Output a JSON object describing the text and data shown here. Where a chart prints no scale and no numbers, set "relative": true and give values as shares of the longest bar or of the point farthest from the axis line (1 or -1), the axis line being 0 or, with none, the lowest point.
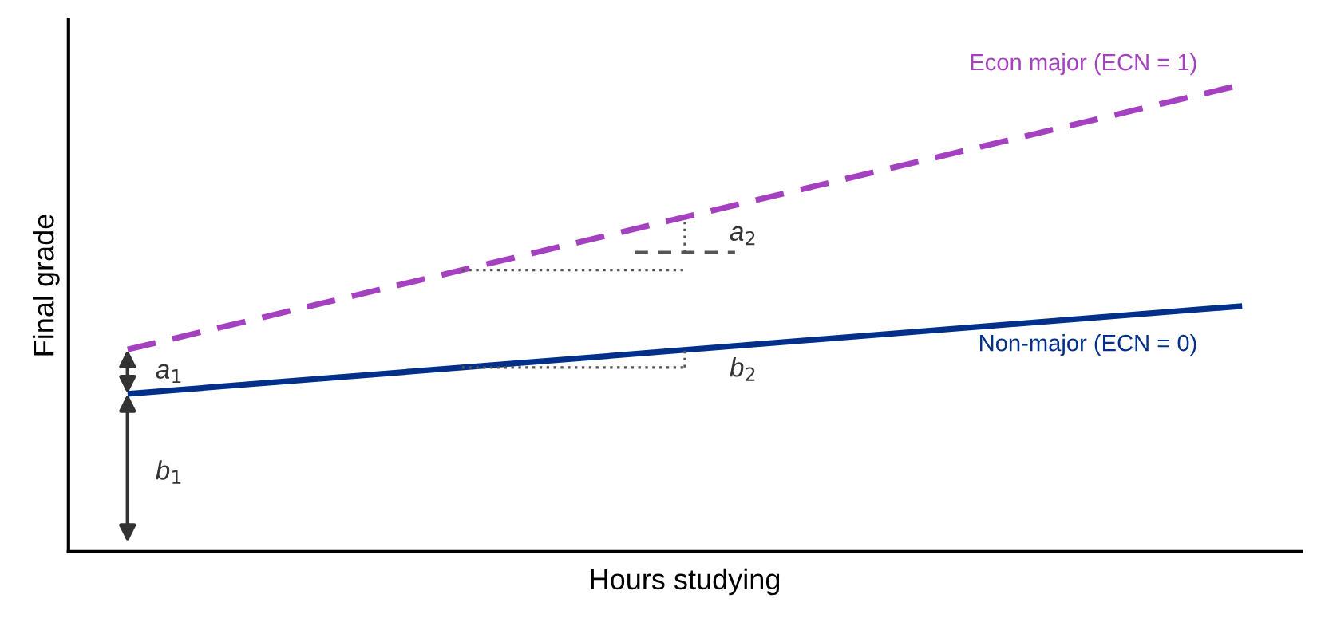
{
  "chart_data": {
    "type": "line",
    "relative": true,
    "xlabel": "Hours studying",
    "ylabel": "Final grade",
    "categories": [
      null,
      null
    ],
    "series": [
      {
        "name": "Econ major (ECN = 1)",
        "color": "#a541c0",
        "line_style": "dashed",
        "values": [
          0.433,
          1.0
        ]
      },
      {
        "name": "Non-major (ECN = 0)",
        "color": "#00308a",
        "line_style": "solid",
        "values": [
          0.338,
          0.526
        ]
      }
    ],
    "annotations": [
      "a$_{1}$",
      "b$_{1}$",
      "a$_{2}$",
      "b$_{2}$"
    ],
    "legend": false,
    "grid": false,
    "marker": "none"
  }
}
